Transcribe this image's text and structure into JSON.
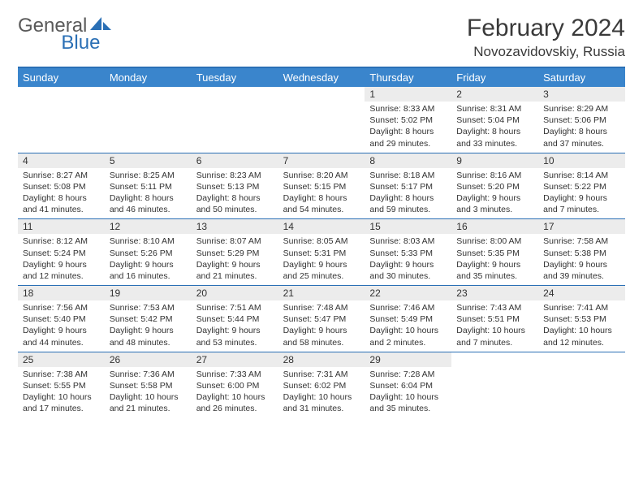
{
  "brand": {
    "text1": "General",
    "text2": "Blue"
  },
  "title": "February 2024",
  "location": "Novozavidovskiy, Russia",
  "colors": {
    "header_bg": "#3a85cc",
    "header_text": "#ffffff",
    "border": "#2a6fb5",
    "daynum_bg": "#ececec",
    "text": "#323232",
    "brand_gray": "#5a5a5a",
    "brand_blue": "#2a6fb5"
  },
  "day_labels": [
    "Sunday",
    "Monday",
    "Tuesday",
    "Wednesday",
    "Thursday",
    "Friday",
    "Saturday"
  ],
  "weeks": [
    [
      {
        "n": "",
        "sr": "",
        "ss": "",
        "d1": "",
        "d2": ""
      },
      {
        "n": "",
        "sr": "",
        "ss": "",
        "d1": "",
        "d2": ""
      },
      {
        "n": "",
        "sr": "",
        "ss": "",
        "d1": "",
        "d2": ""
      },
      {
        "n": "",
        "sr": "",
        "ss": "",
        "d1": "",
        "d2": ""
      },
      {
        "n": "1",
        "sr": "Sunrise: 8:33 AM",
        "ss": "Sunset: 5:02 PM",
        "d1": "Daylight: 8 hours",
        "d2": "and 29 minutes."
      },
      {
        "n": "2",
        "sr": "Sunrise: 8:31 AM",
        "ss": "Sunset: 5:04 PM",
        "d1": "Daylight: 8 hours",
        "d2": "and 33 minutes."
      },
      {
        "n": "3",
        "sr": "Sunrise: 8:29 AM",
        "ss": "Sunset: 5:06 PM",
        "d1": "Daylight: 8 hours",
        "d2": "and 37 minutes."
      }
    ],
    [
      {
        "n": "4",
        "sr": "Sunrise: 8:27 AM",
        "ss": "Sunset: 5:08 PM",
        "d1": "Daylight: 8 hours",
        "d2": "and 41 minutes."
      },
      {
        "n": "5",
        "sr": "Sunrise: 8:25 AM",
        "ss": "Sunset: 5:11 PM",
        "d1": "Daylight: 8 hours",
        "d2": "and 46 minutes."
      },
      {
        "n": "6",
        "sr": "Sunrise: 8:23 AM",
        "ss": "Sunset: 5:13 PM",
        "d1": "Daylight: 8 hours",
        "d2": "and 50 minutes."
      },
      {
        "n": "7",
        "sr": "Sunrise: 8:20 AM",
        "ss": "Sunset: 5:15 PM",
        "d1": "Daylight: 8 hours",
        "d2": "and 54 minutes."
      },
      {
        "n": "8",
        "sr": "Sunrise: 8:18 AM",
        "ss": "Sunset: 5:17 PM",
        "d1": "Daylight: 8 hours",
        "d2": "and 59 minutes."
      },
      {
        "n": "9",
        "sr": "Sunrise: 8:16 AM",
        "ss": "Sunset: 5:20 PM",
        "d1": "Daylight: 9 hours",
        "d2": "and 3 minutes."
      },
      {
        "n": "10",
        "sr": "Sunrise: 8:14 AM",
        "ss": "Sunset: 5:22 PM",
        "d1": "Daylight: 9 hours",
        "d2": "and 7 minutes."
      }
    ],
    [
      {
        "n": "11",
        "sr": "Sunrise: 8:12 AM",
        "ss": "Sunset: 5:24 PM",
        "d1": "Daylight: 9 hours",
        "d2": "and 12 minutes."
      },
      {
        "n": "12",
        "sr": "Sunrise: 8:10 AM",
        "ss": "Sunset: 5:26 PM",
        "d1": "Daylight: 9 hours",
        "d2": "and 16 minutes."
      },
      {
        "n": "13",
        "sr": "Sunrise: 8:07 AM",
        "ss": "Sunset: 5:29 PM",
        "d1": "Daylight: 9 hours",
        "d2": "and 21 minutes."
      },
      {
        "n": "14",
        "sr": "Sunrise: 8:05 AM",
        "ss": "Sunset: 5:31 PM",
        "d1": "Daylight: 9 hours",
        "d2": "and 25 minutes."
      },
      {
        "n": "15",
        "sr": "Sunrise: 8:03 AM",
        "ss": "Sunset: 5:33 PM",
        "d1": "Daylight: 9 hours",
        "d2": "and 30 minutes."
      },
      {
        "n": "16",
        "sr": "Sunrise: 8:00 AM",
        "ss": "Sunset: 5:35 PM",
        "d1": "Daylight: 9 hours",
        "d2": "and 35 minutes."
      },
      {
        "n": "17",
        "sr": "Sunrise: 7:58 AM",
        "ss": "Sunset: 5:38 PM",
        "d1": "Daylight: 9 hours",
        "d2": "and 39 minutes."
      }
    ],
    [
      {
        "n": "18",
        "sr": "Sunrise: 7:56 AM",
        "ss": "Sunset: 5:40 PM",
        "d1": "Daylight: 9 hours",
        "d2": "and 44 minutes."
      },
      {
        "n": "19",
        "sr": "Sunrise: 7:53 AM",
        "ss": "Sunset: 5:42 PM",
        "d1": "Daylight: 9 hours",
        "d2": "and 48 minutes."
      },
      {
        "n": "20",
        "sr": "Sunrise: 7:51 AM",
        "ss": "Sunset: 5:44 PM",
        "d1": "Daylight: 9 hours",
        "d2": "and 53 minutes."
      },
      {
        "n": "21",
        "sr": "Sunrise: 7:48 AM",
        "ss": "Sunset: 5:47 PM",
        "d1": "Daylight: 9 hours",
        "d2": "and 58 minutes."
      },
      {
        "n": "22",
        "sr": "Sunrise: 7:46 AM",
        "ss": "Sunset: 5:49 PM",
        "d1": "Daylight: 10 hours",
        "d2": "and 2 minutes."
      },
      {
        "n": "23",
        "sr": "Sunrise: 7:43 AM",
        "ss": "Sunset: 5:51 PM",
        "d1": "Daylight: 10 hours",
        "d2": "and 7 minutes."
      },
      {
        "n": "24",
        "sr": "Sunrise: 7:41 AM",
        "ss": "Sunset: 5:53 PM",
        "d1": "Daylight: 10 hours",
        "d2": "and 12 minutes."
      }
    ],
    [
      {
        "n": "25",
        "sr": "Sunrise: 7:38 AM",
        "ss": "Sunset: 5:55 PM",
        "d1": "Daylight: 10 hours",
        "d2": "and 17 minutes."
      },
      {
        "n": "26",
        "sr": "Sunrise: 7:36 AM",
        "ss": "Sunset: 5:58 PM",
        "d1": "Daylight: 10 hours",
        "d2": "and 21 minutes."
      },
      {
        "n": "27",
        "sr": "Sunrise: 7:33 AM",
        "ss": "Sunset: 6:00 PM",
        "d1": "Daylight: 10 hours",
        "d2": "and 26 minutes."
      },
      {
        "n": "28",
        "sr": "Sunrise: 7:31 AM",
        "ss": "Sunset: 6:02 PM",
        "d1": "Daylight: 10 hours",
        "d2": "and 31 minutes."
      },
      {
        "n": "29",
        "sr": "Sunrise: 7:28 AM",
        "ss": "Sunset: 6:04 PM",
        "d1": "Daylight: 10 hours",
        "d2": "and 35 minutes."
      },
      {
        "n": "",
        "sr": "",
        "ss": "",
        "d1": "",
        "d2": ""
      },
      {
        "n": "",
        "sr": "",
        "ss": "",
        "d1": "",
        "d2": ""
      }
    ]
  ]
}
